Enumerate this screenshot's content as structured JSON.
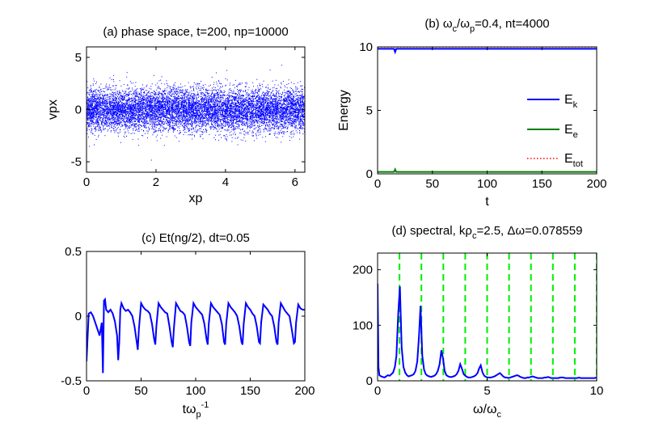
{
  "chart_data": [
    {
      "id": "a",
      "type": "scatter",
      "title": "(a) phase space, t=200, np=10000",
      "xlabel": "xp",
      "ylabel": "vpx",
      "xlim": [
        0,
        6.2832
      ],
      "ylim": [
        -6,
        6
      ],
      "xticks": [
        0,
        2,
        4,
        6
      ],
      "yticks": [
        -5,
        0,
        5
      ],
      "point_count": 10000,
      "point_color": "#0000ff",
      "distribution": {
        "x_range": [
          0,
          6.2832
        ],
        "v_mean": 0,
        "v_std": 1.0
      }
    },
    {
      "id": "b",
      "type": "line",
      "title_parts": [
        "(b) ω",
        "c",
        "/ω",
        "p",
        "=0.4, nt=4000"
      ],
      "xlabel": "t",
      "ylabel": "Energy",
      "xlim": [
        0,
        200
      ],
      "ylim": [
        0,
        10
      ],
      "xticks": [
        0,
        50,
        100,
        150,
        200
      ],
      "yticks": [
        0,
        5,
        10
      ],
      "legend_position": "right",
      "series": [
        {
          "name_main": "E",
          "name_sub": "k",
          "color": "#0000ff",
          "style": "solid",
          "x": [
            0,
            15,
            16,
            17,
            200
          ],
          "y": [
            9.85,
            9.85,
            9.6,
            9.85,
            9.85
          ]
        },
        {
          "name_main": "E",
          "name_sub": "e",
          "color": "#008000",
          "style": "solid",
          "x": [
            0,
            15,
            16,
            17,
            200
          ],
          "y": [
            0.15,
            0.15,
            0.35,
            0.15,
            0.15
          ]
        },
        {
          "name_main": "E",
          "name_sub": "tot",
          "color": "#ff0000",
          "style": "dotted",
          "x": [
            0,
            200
          ],
          "y": [
            10.0,
            10.0
          ]
        }
      ]
    },
    {
      "id": "c",
      "type": "line",
      "title": "(c) Et(ng/2), dt=0.05",
      "xlabel_main": "tω",
      "xlabel_sub": "p",
      "xlabel_sup": "-1",
      "ylabel": "",
      "xlim": [
        0,
        200
      ],
      "ylim": [
        -0.5,
        0.5
      ],
      "xticks": [
        0,
        50,
        100,
        150,
        200
      ],
      "yticks": [
        -0.5,
        0,
        0.5
      ],
      "color": "#0000ff",
      "period": 15.7,
      "x": [
        0,
        2,
        4,
        6,
        8,
        10,
        12,
        14,
        15,
        16,
        17,
        18,
        20,
        22,
        24,
        26,
        28,
        29,
        30,
        31,
        32,
        34,
        36,
        38,
        40,
        42,
        44,
        46,
        47,
        48,
        50,
        52,
        54,
        56,
        58,
        60,
        62,
        63,
        64,
        66,
        68,
        70,
        72,
        74,
        76,
        78,
        79,
        80,
        82,
        84,
        86,
        88,
        90,
        92,
        94,
        95,
        96,
        98,
        100,
        102,
        104,
        106,
        108,
        110,
        111,
        112,
        114,
        116,
        118,
        120,
        122,
        124,
        126,
        127,
        128,
        130,
        132,
        134,
        136,
        138,
        140,
        142,
        143,
        144,
        146,
        148,
        150,
        152,
        154,
        156,
        158,
        159,
        160,
        162,
        164,
        166,
        168,
        170,
        172,
        174,
        175,
        176,
        178,
        180,
        182,
        184,
        186,
        188,
        190,
        191,
        192,
        194,
        196,
        198,
        200
      ],
      "y": [
        -0.35,
        0.02,
        0.03,
        0.0,
        -0.05,
        -0.1,
        -0.15,
        -0.05,
        -0.44,
        0.12,
        0.13,
        0.05,
        0.03,
        0.05,
        0.02,
        -0.04,
        -0.15,
        -0.34,
        -0.2,
        0.05,
        0.1,
        0.06,
        0.04,
        0.05,
        0.03,
        0.0,
        -0.08,
        -0.2,
        -0.26,
        -0.1,
        0.1,
        0.07,
        0.05,
        0.04,
        0.02,
        -0.06,
        -0.18,
        -0.22,
        -0.08,
        0.1,
        0.07,
        0.05,
        0.03,
        0.02,
        -0.08,
        -0.2,
        -0.24,
        -0.1,
        0.1,
        0.07,
        0.04,
        0.03,
        0.01,
        -0.08,
        -0.2,
        -0.23,
        -0.05,
        0.1,
        0.07,
        0.05,
        0.03,
        0.01,
        -0.06,
        -0.18,
        -0.22,
        -0.06,
        0.1,
        0.07,
        0.05,
        0.03,
        0.01,
        -0.06,
        -0.2,
        -0.22,
        -0.06,
        0.1,
        0.07,
        0.05,
        0.03,
        0.0,
        -0.08,
        -0.2,
        -0.22,
        -0.06,
        0.1,
        0.07,
        0.05,
        0.02,
        0.0,
        -0.08,
        -0.2,
        -0.21,
        -0.05,
        0.09,
        0.07,
        0.05,
        0.02,
        0.0,
        -0.08,
        -0.2,
        -0.22,
        -0.05,
        0.1,
        0.07,
        0.04,
        0.02,
        0.0,
        -0.1,
        -0.21,
        -0.2,
        -0.05,
        0.09,
        0.06,
        0.05,
        0.05
      ]
    },
    {
      "id": "d",
      "type": "line",
      "title_parts": [
        "(d) spectral, kρ",
        "c",
        "=2.5, Δω=0.078559"
      ],
      "xlabel_main": "ω/ω",
      "xlabel_sub": "c",
      "ylabel": "",
      "xlim": [
        0,
        10
      ],
      "ylim": [
        0,
        230
      ],
      "xticks": [
        0,
        5,
        10
      ],
      "yticks": [
        0,
        100,
        200
      ],
      "color": "#0000ff",
      "vlines": [
        1,
        2,
        3,
        4,
        5,
        6,
        7,
        8,
        9,
        10
      ],
      "vline_color": "#00ee00",
      "x": [
        0,
        0.04,
        0.08,
        0.16,
        0.24,
        0.31,
        0.39,
        0.47,
        0.55,
        0.63,
        0.71,
        0.79,
        0.86,
        0.94,
        1.02,
        1.1,
        1.18,
        1.26,
        1.34,
        1.41,
        1.49,
        1.57,
        1.65,
        1.73,
        1.81,
        1.89,
        1.96,
        2.04,
        2.12,
        2.2,
        2.28,
        2.36,
        2.44,
        2.51,
        2.59,
        2.67,
        2.75,
        2.83,
        2.91,
        2.99,
        3.06,
        3.14,
        3.22,
        3.3,
        3.38,
        3.46,
        3.53,
        3.61,
        3.69,
        3.77,
        3.85,
        3.93,
        4.01,
        4.08,
        4.16,
        4.24,
        4.32,
        4.4,
        4.48,
        4.56,
        4.63,
        4.71,
        4.79,
        4.87,
        4.95,
        5.03,
        5.11,
        5.18,
        5.26,
        5.34,
        5.42,
        5.5,
        5.58,
        5.66,
        5.73,
        5.81,
        5.89,
        5.97,
        6.05,
        6.13,
        6.21,
        6.28,
        6.36,
        6.44,
        6.52,
        6.6,
        6.68,
        6.76,
        6.83,
        6.91,
        6.99,
        7.07,
        7.15,
        7.23,
        7.31,
        7.38,
        7.46,
        7.54,
        7.62,
        7.7,
        7.78,
        7.86,
        7.93,
        8.01,
        8.09,
        8.17,
        8.25,
        8.33,
        8.41,
        8.48,
        8.56,
        8.64,
        8.72,
        8.8,
        8.88,
        8.96,
        9.03,
        9.11,
        9.19,
        9.27,
        9.35,
        9.43,
        9.51,
        9.58,
        9.66,
        9.74,
        9.82,
        9.9,
        10.0
      ],
      "y": [
        175,
        25,
        10,
        8,
        7,
        6,
        8,
        10,
        9,
        12,
        15,
        25,
        45,
        120,
        170,
        60,
        25,
        15,
        10,
        8,
        9,
        10,
        12,
        18,
        35,
        80,
        135,
        45,
        20,
        12,
        9,
        8,
        7,
        8,
        9,
        12,
        18,
        30,
        55,
        40,
        18,
        10,
        8,
        7,
        7,
        8,
        9,
        12,
        18,
        30,
        22,
        12,
        9,
        7,
        6,
        6,
        7,
        8,
        10,
        14,
        22,
        28,
        15,
        9,
        7,
        6,
        6,
        6,
        7,
        8,
        10,
        12,
        14,
        11,
        8,
        6,
        6,
        5,
        6,
        7,
        8,
        9,
        10,
        9,
        7,
        6,
        5,
        5,
        6,
        6,
        7,
        8,
        7,
        6,
        5,
        5,
        5,
        5,
        6,
        6,
        7,
        6,
        5,
        5,
        5,
        5,
        5,
        6,
        6,
        6,
        5,
        5,
        5,
        5,
        5,
        5,
        5,
        5,
        6,
        5,
        5,
        5,
        5,
        5,
        5,
        5,
        5,
        5,
        6
      ]
    }
  ]
}
